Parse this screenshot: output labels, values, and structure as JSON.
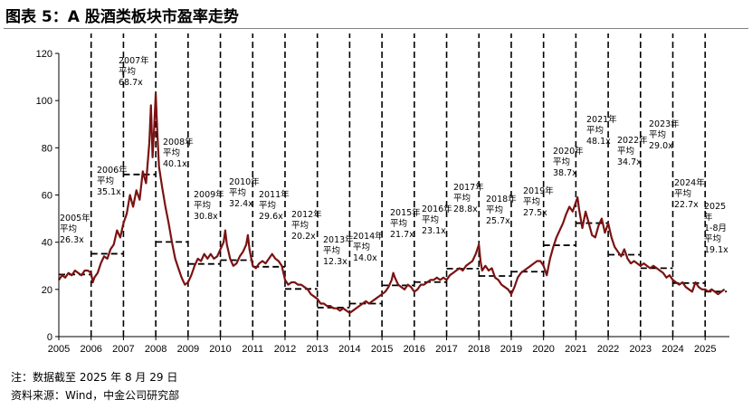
{
  "title": "图表 5：A 股酒类板块市盈率走势",
  "notes": [
    "注：数据截至 2025 年 8 月 29 日",
    "资料来源：Wind，中金公司研究部"
  ],
  "colors": {
    "line": "#7b1212",
    "dash": "#000000",
    "axis": "#000000"
  },
  "chart_data": {
    "type": "line",
    "ylim": [
      0,
      120
    ],
    "yticks": [
      0,
      20,
      40,
      60,
      80,
      100,
      120
    ],
    "xticks": [
      "2005",
      "2006",
      "2007",
      "2008",
      "2009",
      "2010",
      "2011",
      "2012",
      "2013",
      "2014",
      "2015",
      "2016",
      "2017",
      "2018",
      "2019",
      "2020",
      "2021",
      "2022",
      "2023",
      "2024",
      "2025"
    ],
    "xrange": [
      2005.0,
      2025.75
    ],
    "series": [
      {
        "values": [
          [
            2005.0,
            24
          ],
          [
            2005.1,
            26
          ],
          [
            2005.2,
            25
          ],
          [
            2005.3,
            27
          ],
          [
            2005.4,
            26
          ],
          [
            2005.5,
            28
          ],
          [
            2005.6,
            27
          ],
          [
            2005.7,
            26
          ],
          [
            2005.8,
            28
          ],
          [
            2005.9,
            28
          ],
          [
            2006.0,
            27
          ],
          [
            2006.05,
            23
          ],
          [
            2006.1,
            25
          ],
          [
            2006.2,
            27
          ],
          [
            2006.3,
            31
          ],
          [
            2006.4,
            34
          ],
          [
            2006.5,
            33
          ],
          [
            2006.6,
            37
          ],
          [
            2006.7,
            39
          ],
          [
            2006.8,
            45
          ],
          [
            2006.9,
            42
          ],
          [
            2007.0,
            48
          ],
          [
            2007.1,
            52
          ],
          [
            2007.2,
            60
          ],
          [
            2007.3,
            55
          ],
          [
            2007.4,
            62
          ],
          [
            2007.5,
            58
          ],
          [
            2007.6,
            70
          ],
          [
            2007.7,
            65
          ],
          [
            2007.8,
            82
          ],
          [
            2007.85,
            98
          ],
          [
            2007.9,
            76
          ],
          [
            2007.95,
            88
          ],
          [
            2008.0,
            103
          ],
          [
            2008.05,
            86
          ],
          [
            2008.1,
            72
          ],
          [
            2008.2,
            63
          ],
          [
            2008.3,
            55
          ],
          [
            2008.4,
            48
          ],
          [
            2008.5,
            40
          ],
          [
            2008.6,
            33
          ],
          [
            2008.7,
            29
          ],
          [
            2008.8,
            25
          ],
          [
            2008.9,
            22
          ],
          [
            2009.0,
            23
          ],
          [
            2009.1,
            26
          ],
          [
            2009.2,
            30
          ],
          [
            2009.3,
            33
          ],
          [
            2009.4,
            32
          ],
          [
            2009.5,
            35
          ],
          [
            2009.6,
            33
          ],
          [
            2009.7,
            35
          ],
          [
            2009.8,
            33
          ],
          [
            2009.9,
            34
          ],
          [
            2010.0,
            37
          ],
          [
            2010.1,
            40
          ],
          [
            2010.15,
            45
          ],
          [
            2010.2,
            39
          ],
          [
            2010.3,
            33
          ],
          [
            2010.4,
            30
          ],
          [
            2010.5,
            31
          ],
          [
            2010.6,
            34
          ],
          [
            2010.7,
            36
          ],
          [
            2010.8,
            39
          ],
          [
            2010.85,
            43
          ],
          [
            2010.9,
            37
          ],
          [
            2011.0,
            30
          ],
          [
            2011.1,
            29
          ],
          [
            2011.2,
            31
          ],
          [
            2011.3,
            32
          ],
          [
            2011.4,
            31
          ],
          [
            2011.5,
            33
          ],
          [
            2011.6,
            35
          ],
          [
            2011.7,
            33
          ],
          [
            2011.8,
            32
          ],
          [
            2011.9,
            30
          ],
          [
            2012.0,
            24
          ],
          [
            2012.1,
            22
          ],
          [
            2012.2,
            23
          ],
          [
            2012.3,
            23
          ],
          [
            2012.4,
            22
          ],
          [
            2012.5,
            22
          ],
          [
            2012.6,
            21
          ],
          [
            2012.7,
            20
          ],
          [
            2012.8,
            18
          ],
          [
            2012.9,
            17
          ],
          [
            2013.0,
            16
          ],
          [
            2013.1,
            14
          ],
          [
            2013.2,
            14
          ],
          [
            2013.3,
            13
          ],
          [
            2013.4,
            13
          ],
          [
            2013.5,
            12
          ],
          [
            2013.6,
            12
          ],
          [
            2013.7,
            11
          ],
          [
            2013.8,
            12
          ],
          [
            2013.9,
            11
          ],
          [
            2014.0,
            10
          ],
          [
            2014.1,
            11
          ],
          [
            2014.2,
            12
          ],
          [
            2014.3,
            13
          ],
          [
            2014.4,
            14
          ],
          [
            2014.5,
            15
          ],
          [
            2014.6,
            14
          ],
          [
            2014.7,
            15
          ],
          [
            2014.8,
            16
          ],
          [
            2014.9,
            17
          ],
          [
            2015.0,
            18
          ],
          [
            2015.1,
            19
          ],
          [
            2015.2,
            21
          ],
          [
            2015.3,
            24
          ],
          [
            2015.35,
            27
          ],
          [
            2015.4,
            25
          ],
          [
            2015.5,
            22
          ],
          [
            2015.6,
            21
          ],
          [
            2015.7,
            20
          ],
          [
            2015.8,
            22
          ],
          [
            2015.9,
            21
          ],
          [
            2016.0,
            19
          ],
          [
            2016.1,
            20
          ],
          [
            2016.2,
            22
          ],
          [
            2016.3,
            22
          ],
          [
            2016.4,
            23
          ],
          [
            2016.5,
            24
          ],
          [
            2016.6,
            24
          ],
          [
            2016.7,
            25
          ],
          [
            2016.8,
            24
          ],
          [
            2016.9,
            25
          ],
          [
            2017.0,
            24
          ],
          [
            2017.1,
            26
          ],
          [
            2017.2,
            27
          ],
          [
            2017.3,
            28
          ],
          [
            2017.4,
            29
          ],
          [
            2017.5,
            28
          ],
          [
            2017.6,
            30
          ],
          [
            2017.7,
            31
          ],
          [
            2017.8,
            32
          ],
          [
            2017.9,
            35
          ],
          [
            2018.0,
            39
          ],
          [
            2018.05,
            32
          ],
          [
            2018.1,
            28
          ],
          [
            2018.2,
            30
          ],
          [
            2018.3,
            28
          ],
          [
            2018.4,
            29
          ],
          [
            2018.5,
            25
          ],
          [
            2018.6,
            24
          ],
          [
            2018.7,
            22
          ],
          [
            2018.8,
            21
          ],
          [
            2018.9,
            20
          ],
          [
            2019.0,
            18
          ],
          [
            2019.1,
            21
          ],
          [
            2019.2,
            25
          ],
          [
            2019.3,
            27
          ],
          [
            2019.4,
            28
          ],
          [
            2019.5,
            29
          ],
          [
            2019.6,
            30
          ],
          [
            2019.7,
            31
          ],
          [
            2019.8,
            32
          ],
          [
            2019.9,
            32
          ],
          [
            2020.0,
            30
          ],
          [
            2020.1,
            26
          ],
          [
            2020.2,
            33
          ],
          [
            2020.3,
            38
          ],
          [
            2020.4,
            42
          ],
          [
            2020.5,
            45
          ],
          [
            2020.6,
            48
          ],
          [
            2020.7,
            52
          ],
          [
            2020.8,
            55
          ],
          [
            2020.9,
            53
          ],
          [
            2021.0,
            57
          ],
          [
            2021.05,
            59
          ],
          [
            2021.1,
            54
          ],
          [
            2021.2,
            46
          ],
          [
            2021.3,
            53
          ],
          [
            2021.4,
            48
          ],
          [
            2021.5,
            43
          ],
          [
            2021.6,
            42
          ],
          [
            2021.7,
            47
          ],
          [
            2021.8,
            50
          ],
          [
            2021.9,
            44
          ],
          [
            2022.0,
            48
          ],
          [
            2022.1,
            42
          ],
          [
            2022.2,
            38
          ],
          [
            2022.3,
            36
          ],
          [
            2022.4,
            34
          ],
          [
            2022.5,
            37
          ],
          [
            2022.6,
            33
          ],
          [
            2022.7,
            31
          ],
          [
            2022.8,
            32
          ],
          [
            2022.9,
            31
          ],
          [
            2023.0,
            30
          ],
          [
            2023.1,
            31
          ],
          [
            2023.2,
            30
          ],
          [
            2023.3,
            29
          ],
          [
            2023.4,
            30
          ],
          [
            2023.5,
            29
          ],
          [
            2023.6,
            28
          ],
          [
            2023.7,
            27
          ],
          [
            2023.8,
            25
          ],
          [
            2023.9,
            26
          ],
          [
            2024.0,
            24
          ],
          [
            2024.1,
            23
          ],
          [
            2024.2,
            22
          ],
          [
            2024.3,
            23
          ],
          [
            2024.4,
            21
          ],
          [
            2024.5,
            20
          ],
          [
            2024.6,
            19
          ],
          [
            2024.7,
            23
          ],
          [
            2024.8,
            21
          ],
          [
            2024.9,
            20
          ],
          [
            2025.0,
            20
          ],
          [
            2025.1,
            19
          ],
          [
            2025.2,
            20
          ],
          [
            2025.3,
            19
          ],
          [
            2025.4,
            18
          ],
          [
            2025.5,
            19
          ],
          [
            2025.6,
            20
          ]
        ]
      }
    ],
    "averages": [
      {
        "start": 2005,
        "end": 2006,
        "value": 26.3,
        "lines": [
          "2005年",
          "平均",
          "26.3x"
        ]
      },
      {
        "start": 2006,
        "end": 2007,
        "value": 35.1,
        "lines": [
          "2006年",
          "平均",
          "35.1x"
        ]
      },
      {
        "start": 2007,
        "end": 2008,
        "value": 68.7,
        "lines": [
          "2007年",
          "平均",
          "68.7x"
        ]
      },
      {
        "start": 2008,
        "end": 2009,
        "value": 40.1,
        "lines": [
          "2008年",
          "平均",
          "40.1x"
        ]
      },
      {
        "start": 2009,
        "end": 2010,
        "value": 30.8,
        "lines": [
          "2009年",
          "平均",
          "30.8x"
        ]
      },
      {
        "start": 2010,
        "end": 2011,
        "value": 32.4,
        "lines": [
          "2010年",
          "平均",
          "32.4x"
        ]
      },
      {
        "start": 2011,
        "end": 2012,
        "value": 29.6,
        "lines": [
          "2011年",
          "平均",
          "29.6x"
        ]
      },
      {
        "start": 2012,
        "end": 2013,
        "value": 20.2,
        "lines": [
          "2012年",
          "平均",
          "20.2x"
        ]
      },
      {
        "start": 2013,
        "end": 2014,
        "value": 12.3,
        "lines": [
          "2013年",
          "平均",
          "12.3x"
        ]
      },
      {
        "start": 2014,
        "end": 2015,
        "value": 14.0,
        "lines": [
          "2014年",
          "平均",
          "14.0x"
        ]
      },
      {
        "start": 2015,
        "end": 2016,
        "value": 21.7,
        "lines": [
          "2015年",
          "平均",
          "21.7x"
        ]
      },
      {
        "start": 2016,
        "end": 2017,
        "value": 23.1,
        "lines": [
          "2016年",
          "平均",
          "23.1x"
        ]
      },
      {
        "start": 2017,
        "end": 2018,
        "value": 28.8,
        "lines": [
          "2017年",
          "平均",
          "28.8x"
        ]
      },
      {
        "start": 2018,
        "end": 2019,
        "value": 25.7,
        "lines": [
          "2018年",
          "平均",
          "25.7x"
        ]
      },
      {
        "start": 2019,
        "end": 2020,
        "value": 27.5,
        "lines": [
          "2019年",
          "平均",
          "27.5x"
        ]
      },
      {
        "start": 2020,
        "end": 2021,
        "value": 38.7,
        "lines": [
          "2020年",
          "平均",
          "38.7x"
        ]
      },
      {
        "start": 2021,
        "end": 2022,
        "value": 48.1,
        "lines": [
          "2021年",
          "平均",
          "48.1x"
        ]
      },
      {
        "start": 2022,
        "end": 2023,
        "value": 34.7,
        "lines": [
          "2022年",
          "平均",
          "34.7x"
        ]
      },
      {
        "start": 2023,
        "end": 2024,
        "value": 29.0,
        "lines": [
          "2023年",
          "平均",
          "29.0x"
        ]
      },
      {
        "start": 2024,
        "end": 2025,
        "value": 22.7,
        "lines": [
          "2024年",
          "平均",
          "22.7x"
        ]
      },
      {
        "start": 2025,
        "end": 2025.67,
        "value": 19.1,
        "lines": [
          "2025",
          "年",
          "1-8月",
          "平均",
          "19.1x"
        ]
      }
    ]
  }
}
